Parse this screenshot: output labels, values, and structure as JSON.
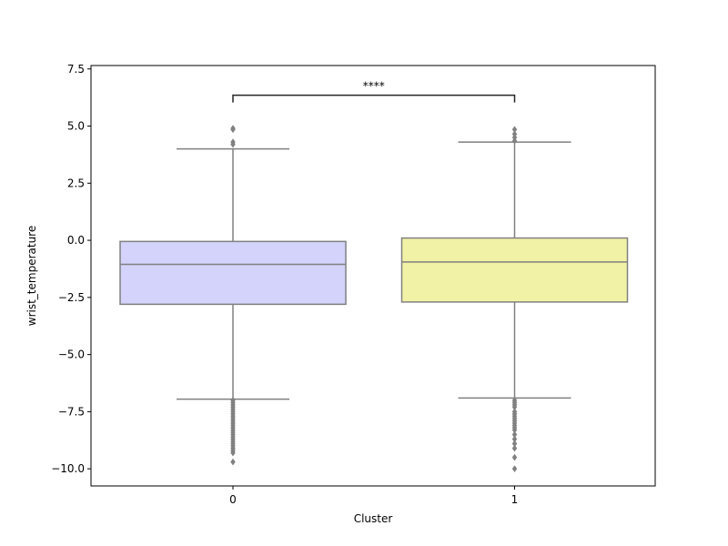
{
  "chart_data": {
    "type": "box",
    "title": "",
    "xlabel": "Cluster",
    "ylabel": "wrist_temperature",
    "ylim": [
      -10.75,
      7.65
    ],
    "yticks": [
      -10.0,
      -7.5,
      -5.0,
      -2.5,
      0.0,
      2.5,
      5.0,
      7.5
    ],
    "ytick_labels": [
      "−10.0",
      "−7.5",
      "−5.0",
      "−2.5",
      "0.0",
      "2.5",
      "5.0",
      "7.5"
    ],
    "categories": [
      "0",
      "1"
    ],
    "grid": false,
    "boxes": [
      {
        "category": "0",
        "color": "#d3d3fb",
        "whisker_low": -6.95,
        "q1": -2.8,
        "median": -1.05,
        "q3": -0.05,
        "whisker_high": 4.0,
        "outliers_high": [
          4.2,
          4.3,
          4.85,
          4.9
        ],
        "outliers_low": [
          -7.0,
          -7.1,
          -7.2,
          -7.3,
          -7.4,
          -7.5,
          -7.6,
          -7.7,
          -7.8,
          -7.9,
          -8.0,
          -8.1,
          -8.2,
          -8.3,
          -8.4,
          -8.5,
          -8.6,
          -8.7,
          -8.8,
          -8.9,
          -9.0,
          -9.1,
          -9.2,
          -9.3,
          -9.7
        ]
      },
      {
        "category": "1",
        "color": "#f2f2a6",
        "whisker_low": -6.9,
        "q1": -2.7,
        "median": -0.95,
        "q3": 0.1,
        "whisker_high": 4.3,
        "outliers_high": [
          4.35,
          4.5,
          4.65,
          4.85
        ],
        "outliers_low": [
          -7.0,
          -7.1,
          -7.2,
          -7.3,
          -7.5,
          -7.6,
          -7.7,
          -7.8,
          -7.9,
          -8.0,
          -8.1,
          -8.2,
          -8.3,
          -8.5,
          -8.7,
          -8.9,
          -9.1,
          -9.5,
          -10.0
        ]
      }
    ],
    "annotation": {
      "between": [
        "0",
        "1"
      ],
      "text": "****",
      "y": 6.35
    },
    "colors": {
      "line": "#808080",
      "bracket": "#262626"
    }
  }
}
